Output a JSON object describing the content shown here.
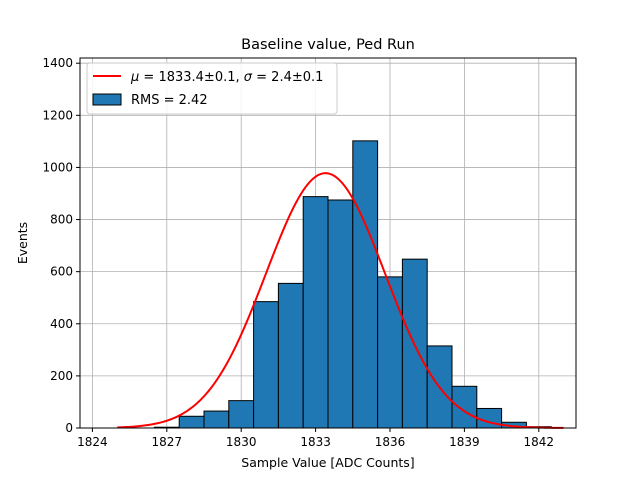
{
  "chart_data": {
    "type": "bar",
    "title": "Baseline value, Ped Run",
    "xlabel": "Sample Value [ADC Counts]",
    "ylabel": "Events",
    "xlim": [
      1823.5,
      1843.5
    ],
    "ylim": [
      0,
      1420
    ],
    "xticks": [
      1824,
      1827,
      1830,
      1833,
      1836,
      1839,
      1842
    ],
    "yticks": [
      0,
      200,
      400,
      600,
      800,
      1000,
      1200,
      1400
    ],
    "grid": true,
    "legend_position": "top-left",
    "bin_width": 1,
    "bins": [
      {
        "x0": 1826.5,
        "count": 3
      },
      {
        "x0": 1827.5,
        "count": 45
      },
      {
        "x0": 1828.5,
        "count": 65
      },
      {
        "x0": 1829.5,
        "count": 105
      },
      {
        "x0": 1830.5,
        "count": 485
      },
      {
        "x0": 1831.5,
        "count": 555
      },
      {
        "x0": 1832.5,
        "count": 888
      },
      {
        "x0": 1833.5,
        "count": 875
      },
      {
        "x0": 1834.5,
        "count": 1102
      },
      {
        "x0": 1835.5,
        "count": 580
      },
      {
        "x0": 1836.5,
        "count": 648
      },
      {
        "x0": 1837.5,
        "count": 315
      },
      {
        "x0": 1838.5,
        "count": 160
      },
      {
        "x0": 1839.5,
        "count": 75
      },
      {
        "x0": 1840.5,
        "count": 22
      },
      {
        "x0": 1841.5,
        "count": 5
      }
    ],
    "fit": {
      "mu": 1833.4,
      "sigma": 2.4,
      "amplitude": 978,
      "x_range": [
        1825,
        1843
      ]
    },
    "colors": {
      "bar_fill": "#1f77b4",
      "bar_edge": "#000000",
      "fit_line": "#ff0000",
      "grid": "#b0b0b0"
    },
    "legend": [
      {
        "kind": "line",
        "label_prefix": "μ",
        "label_mid": " = 1833.4±0.1, ",
        "label_sigma": "σ",
        "label_suffix": " = 2.4±0.1"
      },
      {
        "kind": "patch",
        "label": "RMS = 2.42"
      }
    ]
  }
}
